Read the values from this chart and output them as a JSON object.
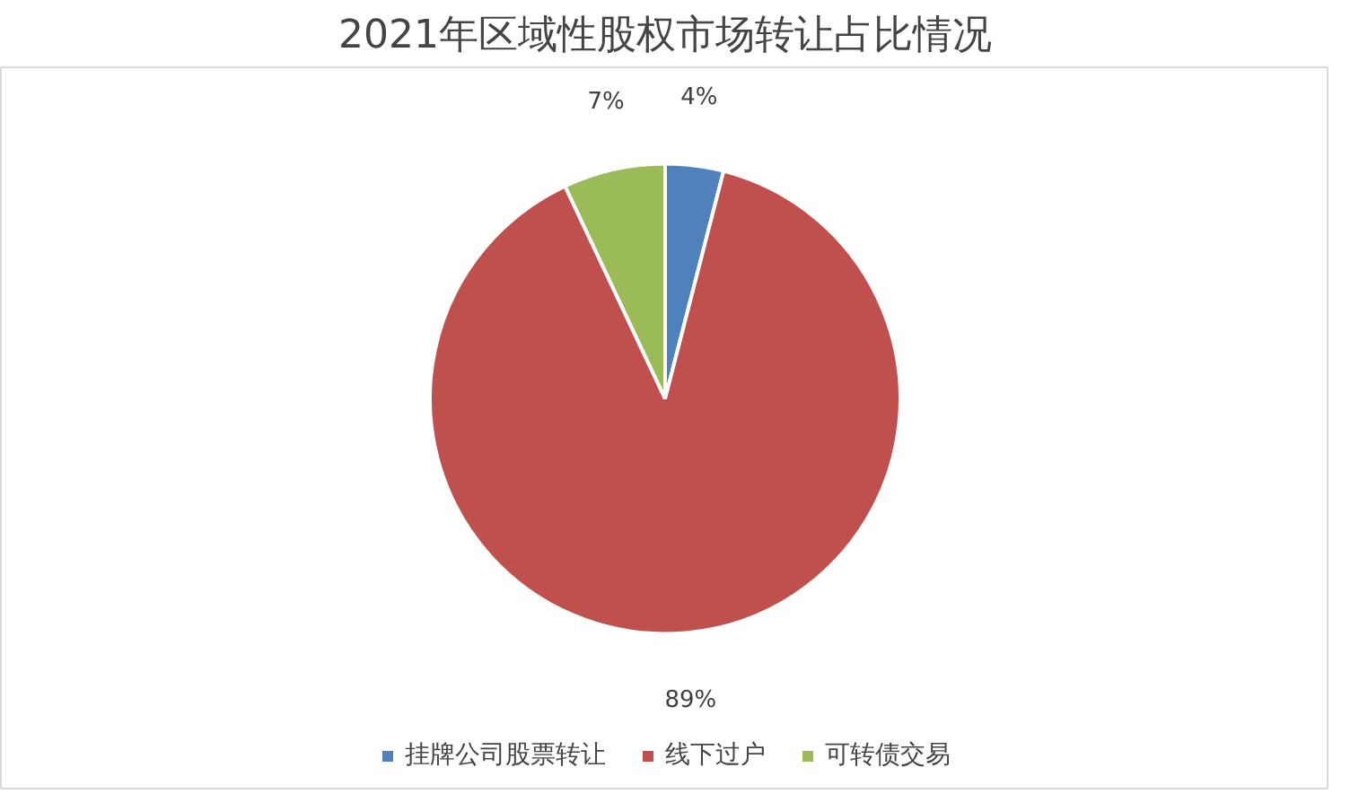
{
  "chart_data": {
    "type": "pie",
    "title": "2021年区域性股权市场转让占比情况",
    "categories": [
      "挂牌公司股票转让",
      "线下过户",
      "可转债交易"
    ],
    "values": [
      4,
      89,
      7
    ],
    "colors": [
      "#4f81bd",
      "#c0504d",
      "#9bbb59"
    ],
    "value_labels": [
      "4%",
      "89%",
      "7%"
    ],
    "legend": "bottom"
  }
}
